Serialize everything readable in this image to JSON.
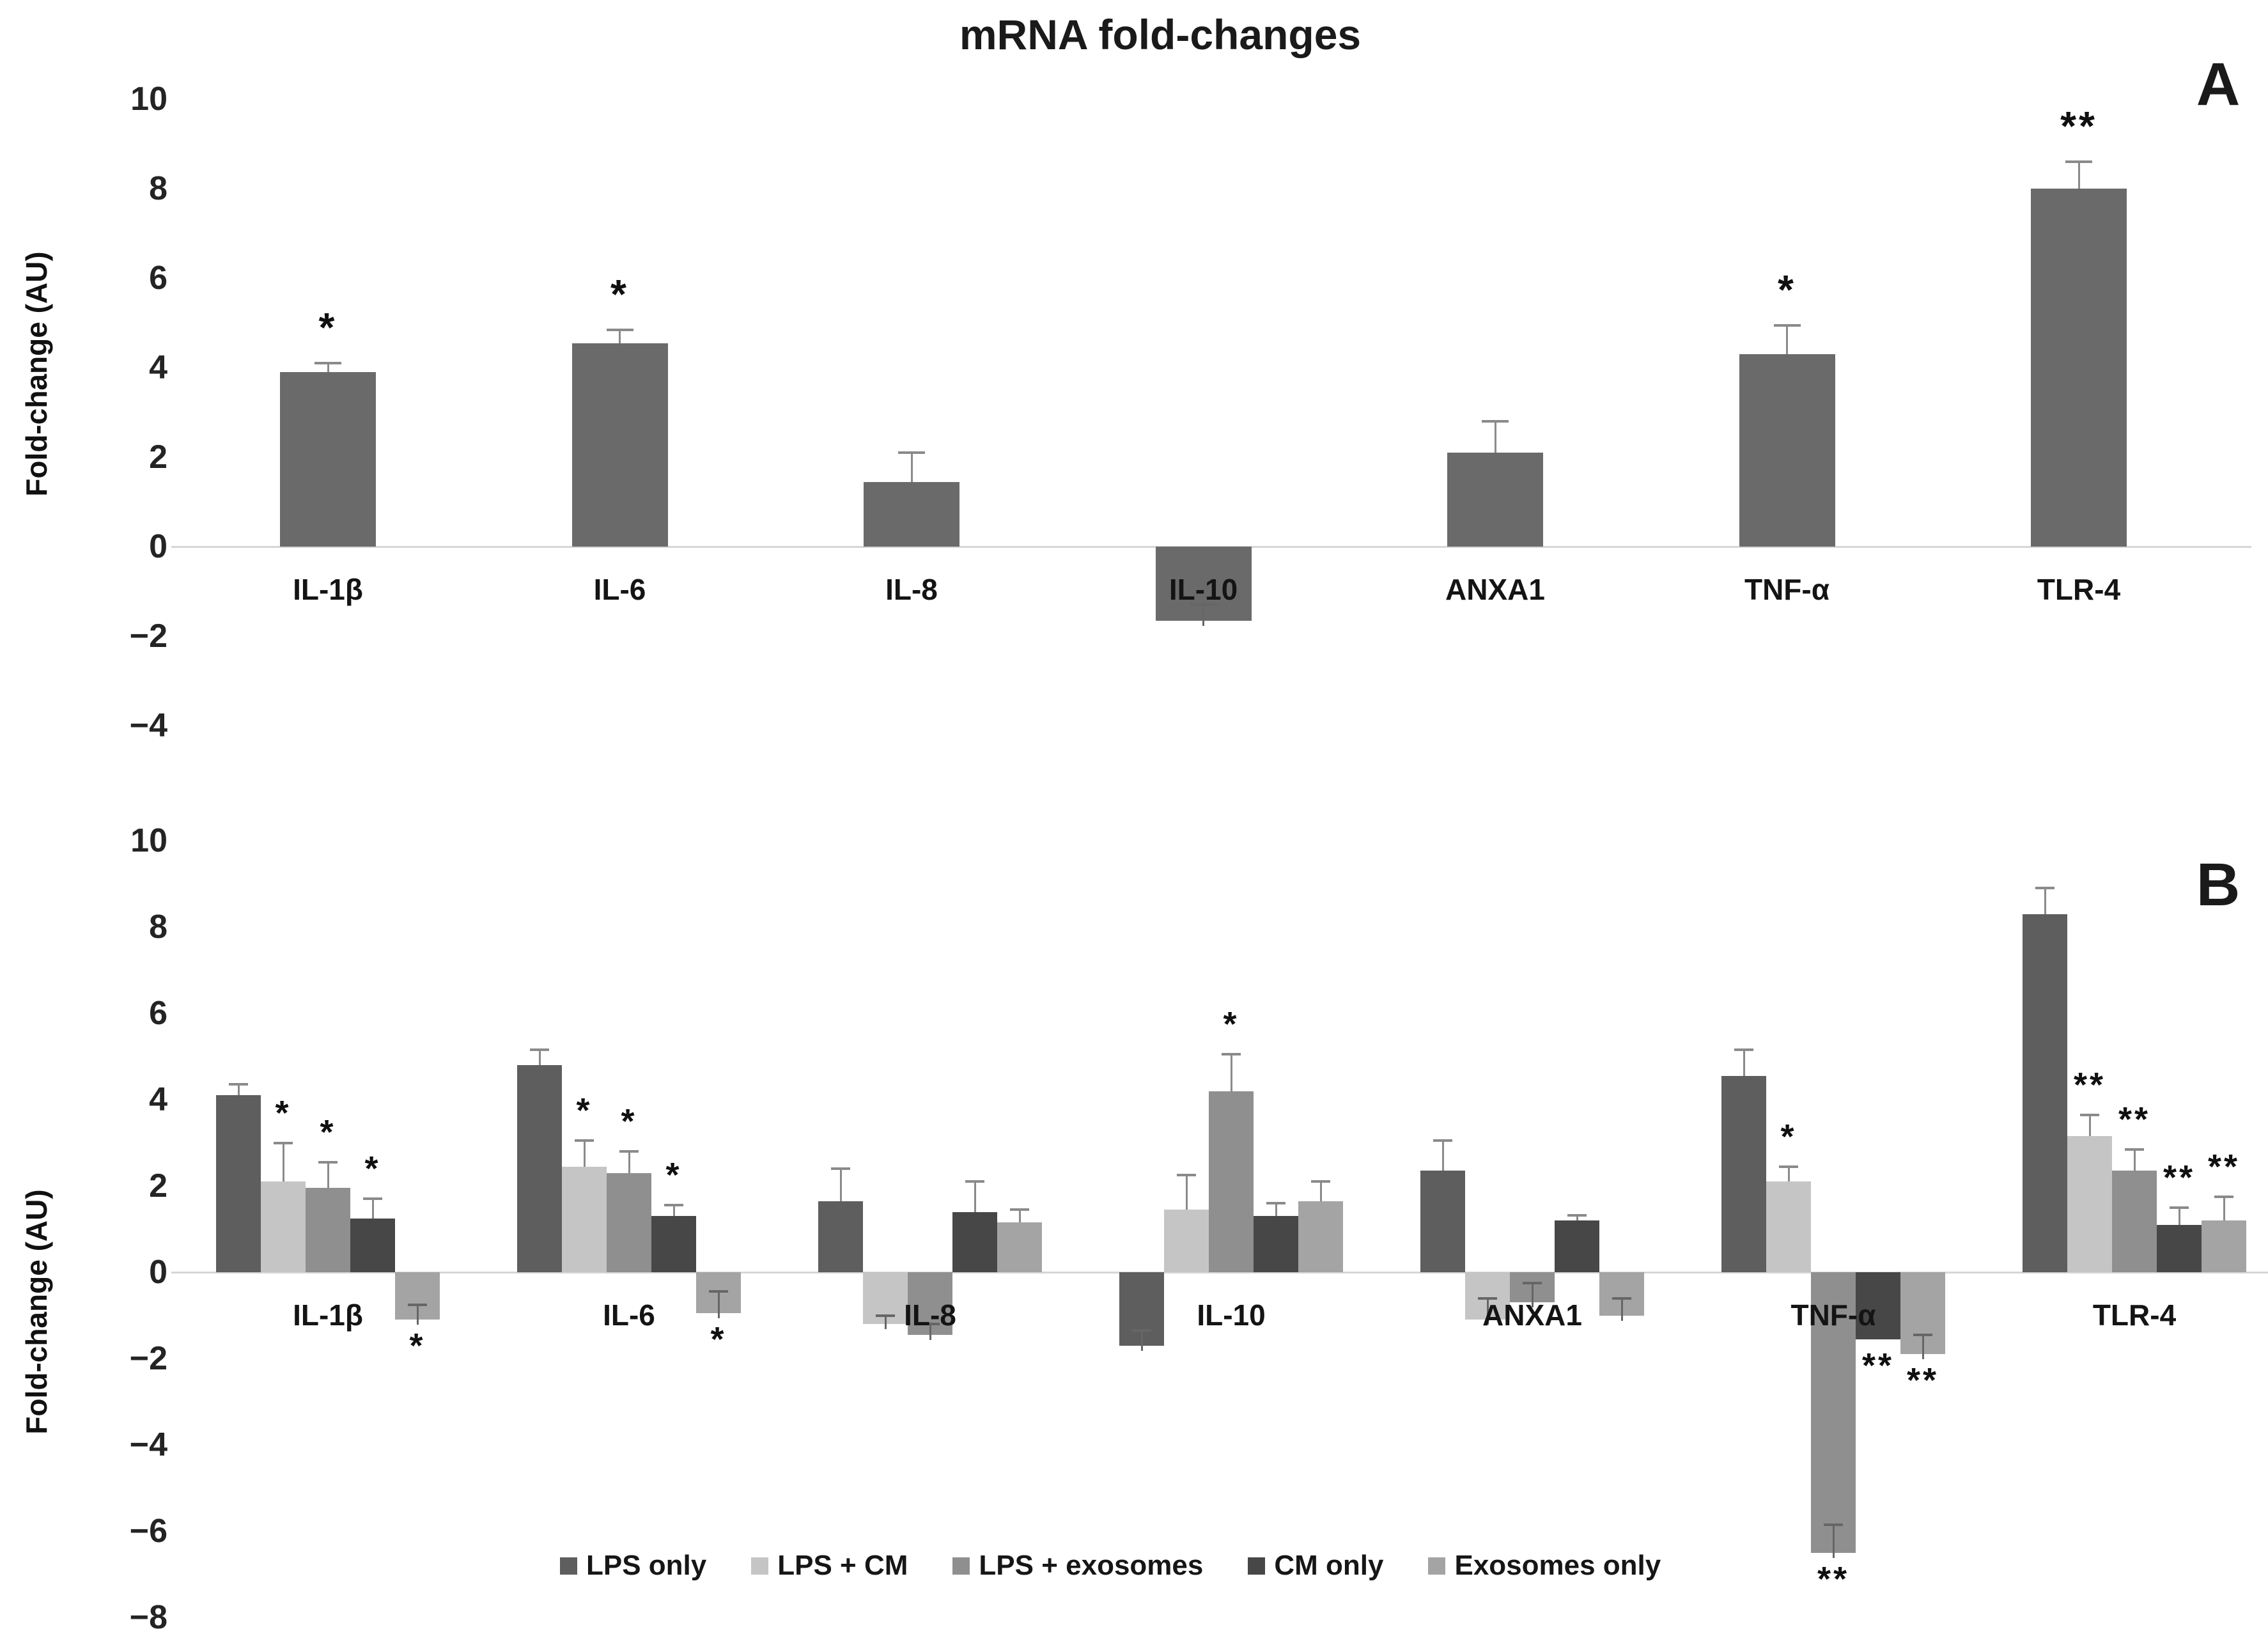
{
  "title": "mRNA fold-changes",
  "ylabel": "Fold-change (AU)",
  "chart_data": [
    {
      "type": "bar",
      "panel_label": "A",
      "ylabel": "Fold-change (AU)",
      "ylim": [
        -4,
        10
      ],
      "yticks": [
        10,
        8,
        6,
        4,
        2,
        0,
        -2,
        -4
      ],
      "grid": false,
      "categories": [
        "IL-1β",
        "IL-6",
        "IL-8",
        "IL-10",
        "ANXA1",
        "TNF-α",
        "TLR-4"
      ],
      "series": [
        {
          "name": "",
          "color": "#6a6a6a",
          "values": [
            3.9,
            4.55,
            1.45,
            -1.65,
            2.1,
            4.3,
            8.0
          ],
          "errors": [
            0.2,
            0.3,
            0.65,
            0.35,
            0.7,
            0.65,
            0.6
          ],
          "sig": [
            "*",
            "*",
            "",
            "",
            "",
            "*",
            "**"
          ]
        }
      ],
      "legend_position": "none"
    },
    {
      "type": "bar",
      "panel_label": "B",
      "ylabel": "Fold-change (AU)",
      "ylim": [
        -8,
        10
      ],
      "yticks": [
        10,
        8,
        6,
        4,
        2,
        0,
        -2,
        -4,
        -6,
        -8
      ],
      "grid": false,
      "categories": [
        "IL-1β",
        "IL-6",
        "IL-8",
        "IL-10",
        "ANXA1",
        "TNF-α",
        "TLR-4"
      ],
      "series": [
        {
          "name": "LPS only",
          "color": "#5e5e5e",
          "values": [
            4.1,
            4.8,
            1.65,
            -1.7,
            2.35,
            4.55,
            8.3
          ],
          "errors": [
            0.25,
            0.35,
            0.75,
            0.35,
            0.7,
            0.6,
            0.6
          ],
          "sig": [
            "",
            "",
            "",
            "",
            "",
            "",
            ""
          ]
        },
        {
          "name": "LPS + CM",
          "color": "#c5c5c5",
          "values": [
            2.1,
            2.45,
            -1.2,
            1.45,
            -1.1,
            2.1,
            3.15
          ],
          "errors": [
            0.9,
            0.6,
            0.2,
            0.8,
            0.5,
            0.35,
            0.5
          ],
          "sig": [
            "*",
            "*",
            "",
            "",
            "",
            "*",
            "**"
          ]
        },
        {
          "name": "LPS + exosomes",
          "color": "#8f8f8f",
          "values": [
            1.95,
            2.3,
            -1.45,
            4.2,
            -0.7,
            -6.5,
            2.35
          ],
          "errors": [
            0.6,
            0.5,
            0.25,
            0.85,
            0.45,
            0.65,
            0.5
          ],
          "sig": [
            "*",
            "*",
            "",
            "*",
            "",
            "**",
            "**"
          ]
        },
        {
          "name": "CM only",
          "color": "#474747",
          "values": [
            1.25,
            1.3,
            1.4,
            1.3,
            1.2,
            -1.55,
            1.1
          ],
          "errors": [
            0.45,
            0.25,
            0.7,
            0.3,
            0.12,
            0,
            0.4
          ],
          "sig": [
            "*",
            "*",
            "",
            "",
            "",
            "**",
            "**"
          ]
        },
        {
          "name": "Exosomes only",
          "color": "#a4a4a4",
          "values": [
            -1.1,
            -0.95,
            1.15,
            1.65,
            -1.0,
            -1.9,
            1.2
          ],
          "errors": [
            0.35,
            0.5,
            0.3,
            0.45,
            0.4,
            0.45,
            0.55
          ],
          "sig": [
            "*",
            "*",
            "",
            "",
            "",
            "**",
            "**"
          ]
        }
      ],
      "legend_position": "bottom"
    }
  ]
}
